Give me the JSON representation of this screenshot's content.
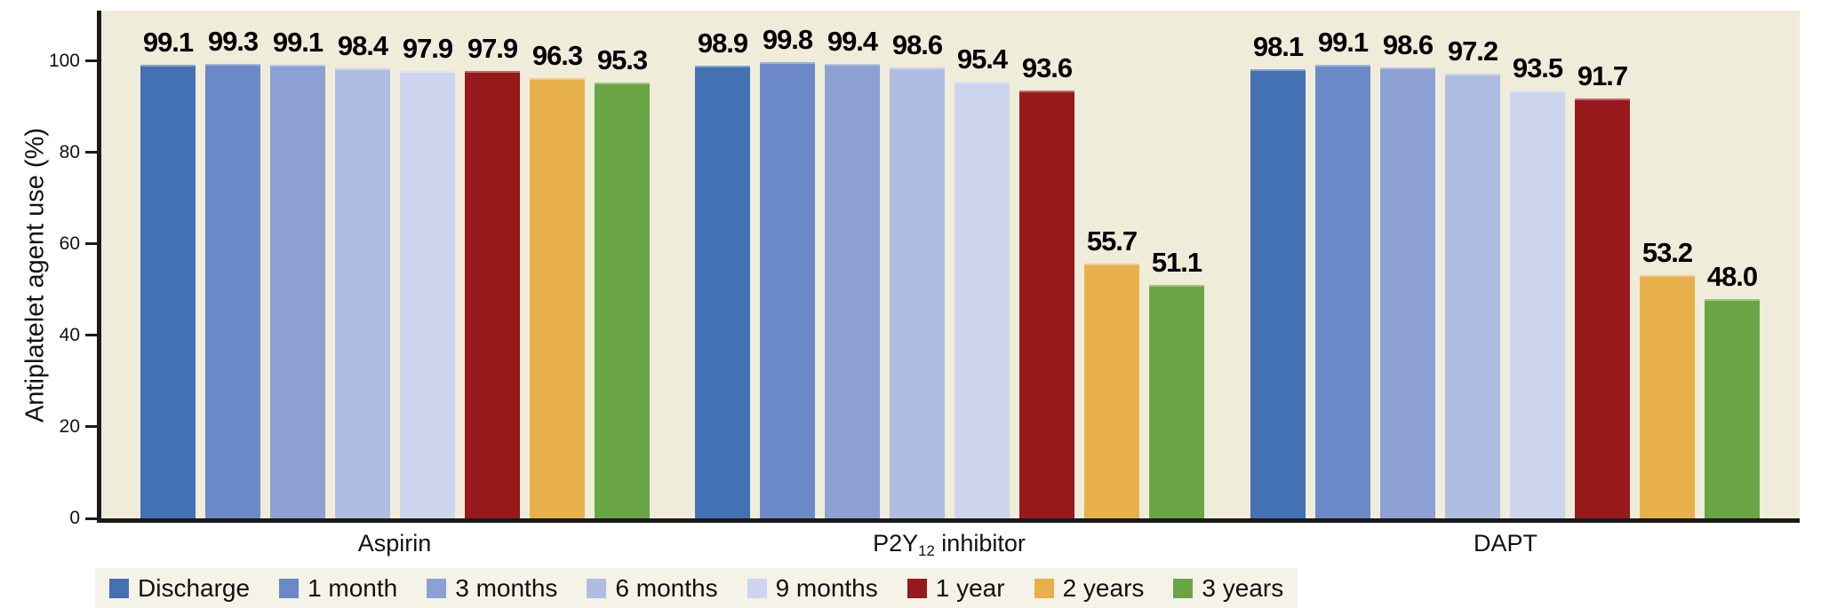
{
  "chart_data": {
    "type": "bar",
    "title": "",
    "xlabel": "",
    "ylabel": "Antiplatelet agent use (%)",
    "ylim": [
      0,
      111
    ],
    "yticks": [
      0,
      20,
      40,
      60,
      80,
      100
    ],
    "grid": false,
    "legend_position": "bottom",
    "value_labels_decimals": 1,
    "categories": [
      {
        "label": "Aspirin"
      },
      {
        "label": "P2Y12 inhibitor",
        "pre": "P2Y",
        "sub": "12",
        "post": " inhibitor"
      },
      {
        "label": "DAPT"
      }
    ],
    "series": [
      {
        "name": "Discharge",
        "color": "#4371B3",
        "values": [
          99.1,
          98.9,
          98.1
        ]
      },
      {
        "name": "1 month",
        "color": "#6A89C6",
        "values": [
          99.3,
          99.8,
          99.1
        ]
      },
      {
        "name": "3 months",
        "color": "#8CA0D3",
        "values": [
          99.1,
          99.4,
          98.6
        ]
      },
      {
        "name": "6 months",
        "color": "#AFBDE2",
        "values": [
          98.4,
          98.6,
          97.2
        ]
      },
      {
        "name": "9 months",
        "color": "#CDD4EE",
        "values": [
          97.9,
          95.4,
          93.5
        ]
      },
      {
        "name": "1 year",
        "color": "#96191B",
        "values": [
          97.9,
          93.6,
          91.7
        ]
      },
      {
        "name": "2 years",
        "color": "#E7B04A",
        "values": [
          96.3,
          55.7,
          53.2
        ]
      },
      {
        "name": "3 years",
        "color": "#69A544",
        "values": [
          95.3,
          51.1,
          48.0
        ]
      }
    ]
  },
  "colors": {
    "plot_background": "#EFECDA",
    "legend_background": "#F5F3E8",
    "axis": "#1A1A1A",
    "value_label_text": "#000000",
    "page_background": "#FFFFFF"
  }
}
